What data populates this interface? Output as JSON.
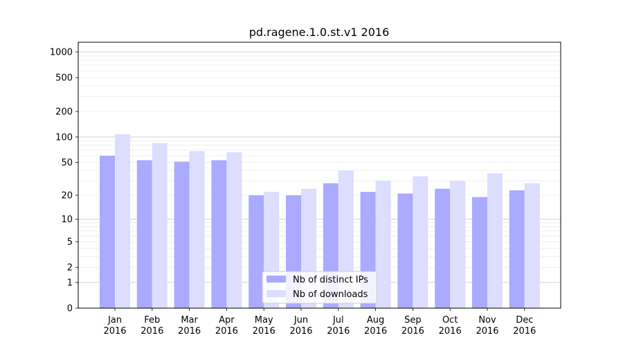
{
  "chart_data": {
    "type": "bar",
    "title": "pd.ragene.1.0.st.v1 2016",
    "xlabel": "",
    "ylabel": "",
    "yscale": "symlog",
    "ylim": [
      0,
      1300
    ],
    "yticks": [
      0,
      1,
      2,
      5,
      10,
      20,
      50,
      100,
      200,
      500,
      1000
    ],
    "ytick_labels": [
      "0",
      "1",
      "2",
      "5",
      "10",
      "20",
      "50",
      "100",
      "200",
      "500",
      "1000"
    ],
    "categories": [
      "Jan\n2016",
      "Feb\n2016",
      "Mar\n2016",
      "Apr\n2016",
      "May\n2016",
      "Jun\n2016",
      "Jul\n2016",
      "Aug\n2016",
      "Sep\n2016",
      "Oct\n2016",
      "Nov\n2016",
      "Dec\n2016"
    ],
    "category_lines": [
      [
        "Jan",
        "2016"
      ],
      [
        "Feb",
        "2016"
      ],
      [
        "Mar",
        "2016"
      ],
      [
        "Apr",
        "2016"
      ],
      [
        "May",
        "2016"
      ],
      [
        "Jun",
        "2016"
      ],
      [
        "Jul",
        "2016"
      ],
      [
        "Aug",
        "2016"
      ],
      [
        "Sep",
        "2016"
      ],
      [
        "Oct",
        "2016"
      ],
      [
        "Nov",
        "2016"
      ],
      [
        "Dec",
        "2016"
      ]
    ],
    "series": [
      {
        "name": "Nb of distinct IPs",
        "color": "#aaaaff",
        "values": [
          60,
          53,
          51,
          53,
          20,
          20,
          28,
          22,
          21,
          24,
          19,
          23
        ]
      },
      {
        "name": "Nb of downloads",
        "color": "#ddddff",
        "values": [
          108,
          85,
          68,
          66,
          22,
          24,
          40,
          30,
          34,
          30,
          37,
          28
        ]
      }
    ],
    "grid": true,
    "legend_position": "bottom-center"
  }
}
